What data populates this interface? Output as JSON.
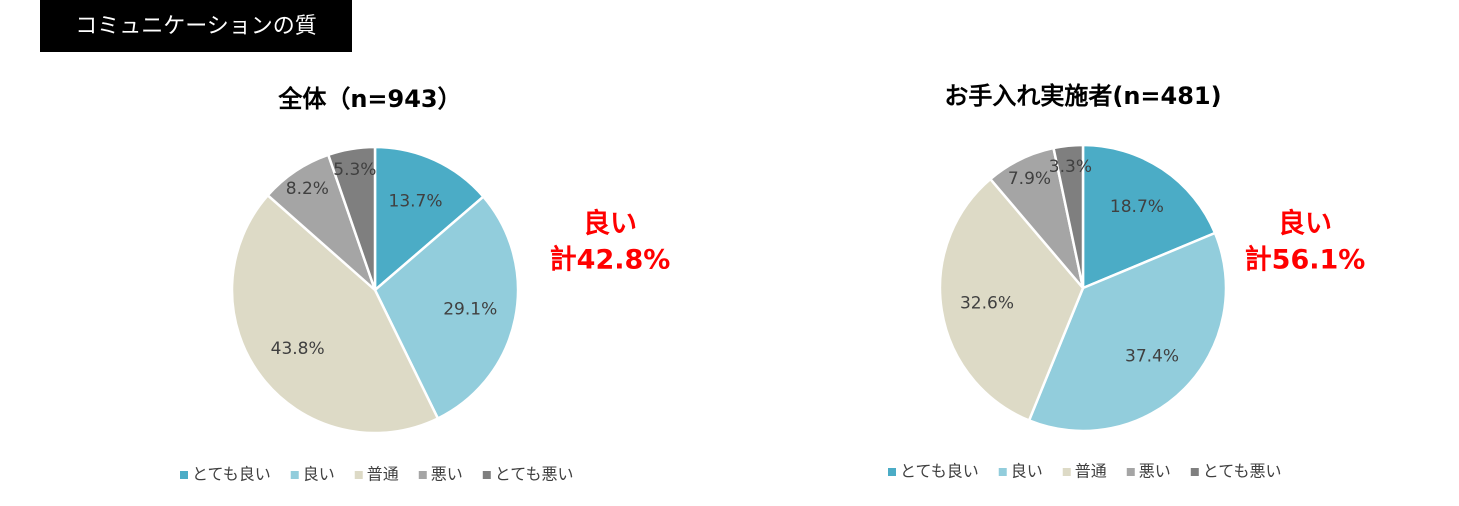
{
  "header": {
    "title": "コミュニケーションの質"
  },
  "chart_data": [
    {
      "type": "pie",
      "title": "全体（n=943）",
      "categories": [
        "とても良い",
        "良い",
        "普通",
        "悪い",
        "とても悪い"
      ],
      "values": [
        13.7,
        29.1,
        43.8,
        8.2,
        5.3
      ],
      "value_labels": [
        "13.7%",
        "29.1%",
        "43.8%",
        "8.2%",
        "5.3%"
      ],
      "colors": [
        "#4bacc6",
        "#92cddc",
        "#dddac6",
        "#a5a5a5",
        "#7f7f7f"
      ],
      "annotation": [
        "良い",
        "計42.8%"
      ]
    },
    {
      "type": "pie",
      "title": "お手入れ実施者(n=481)",
      "categories": [
        "とても良い",
        "良い",
        "普通",
        "悪い",
        "とても悪い"
      ],
      "values": [
        18.7,
        37.4,
        32.6,
        7.9,
        3.3
      ],
      "value_labels": [
        "18.7%",
        "37.4%",
        "32.6%",
        "7.9%",
        "3.3%"
      ],
      "colors": [
        "#4bacc6",
        "#92cddc",
        "#dddac6",
        "#a5a5a5",
        "#7f7f7f"
      ],
      "annotation": [
        "良い",
        "計56.1%"
      ]
    }
  ]
}
